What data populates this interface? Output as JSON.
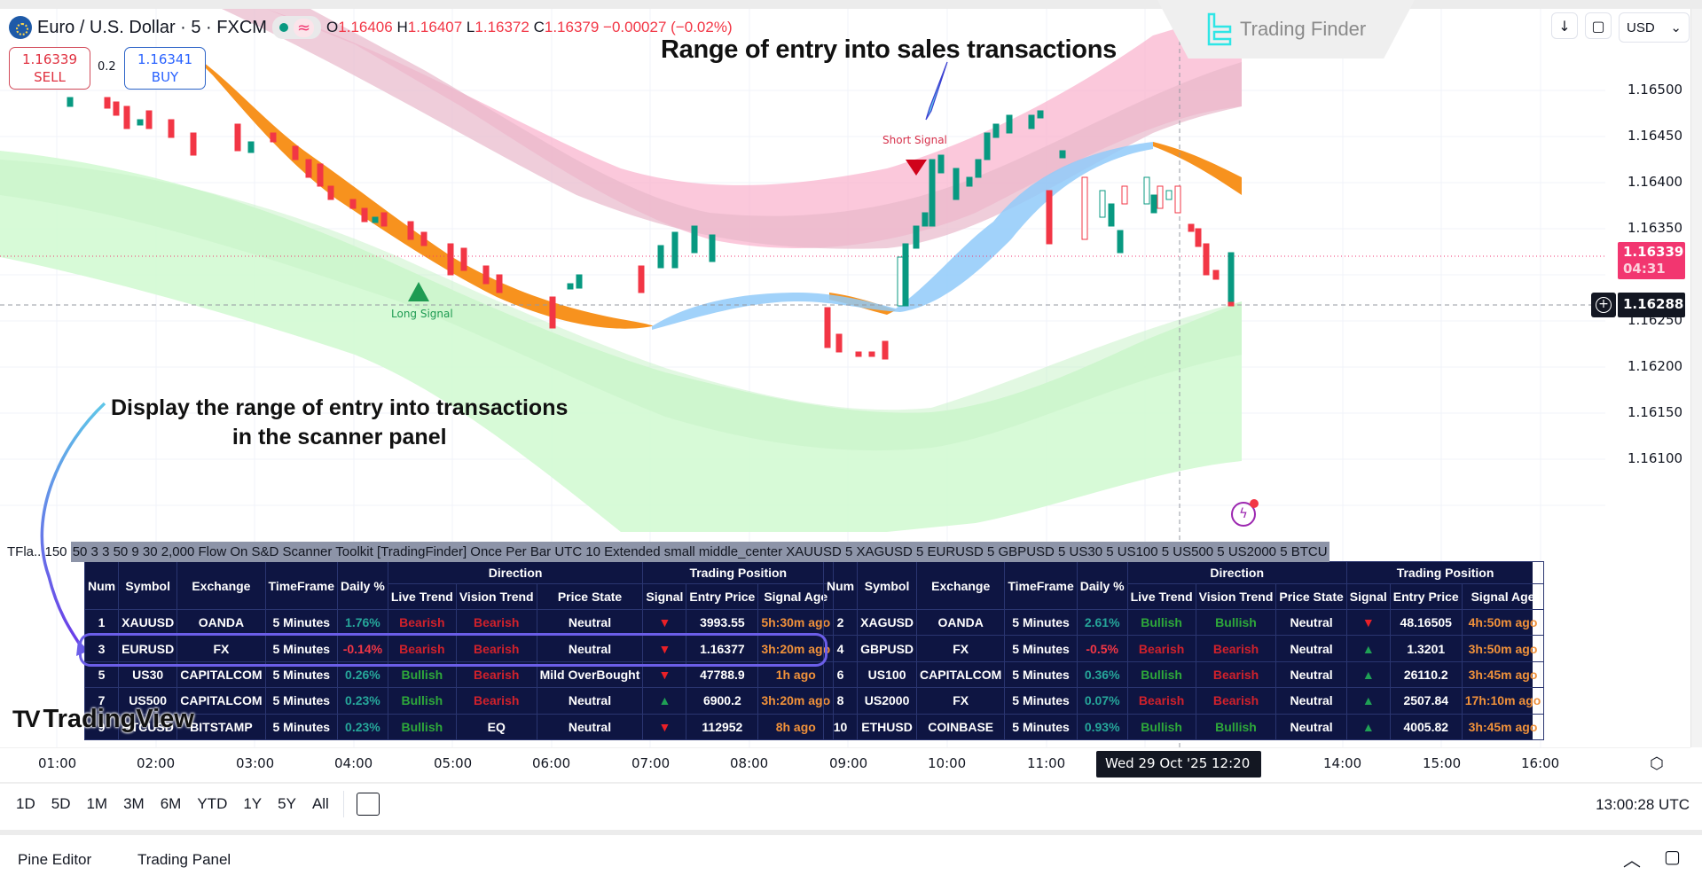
{
  "header": {
    "symbol_title": "Euro / U.S. Dollar · 5 · FXCM",
    "market_status": "open",
    "ohlc": {
      "o_label": "O",
      "o": "1.16406",
      "h_label": "H",
      "h": "1.16407",
      "l_label": "L",
      "l": "1.16372",
      "c_label": "C",
      "c": "1.16379",
      "change": "−0.00027 (−0.02%)"
    },
    "sell": {
      "price": "1.16339",
      "label": "SELL"
    },
    "buy": {
      "price": "1.16341",
      "label": "BUY"
    },
    "spread": "0.2"
  },
  "watermark": {
    "brand": "Trading Finder"
  },
  "top_controls": {
    "arrow": "↓",
    "fullscreen": "⛶",
    "currency": "USD"
  },
  "price_axis": {
    "ticks": [
      "1.16500",
      "1.16450",
      "1.16400",
      "1.16350",
      "1.16300",
      "1.16250",
      "1.16200",
      "1.16150",
      "1.16100"
    ],
    "last_price": "1.16339",
    "countdown": "04:31",
    "crosshair_price": "1.16288"
  },
  "annotations": {
    "sales_range": "Range of entry into sales transactions",
    "scanner_line1": "Display the range of entry into transactions",
    "scanner_line2": "in the scanner panel",
    "short_signal": "Short Signal",
    "long_signal": "Long Signal"
  },
  "settings_line": {
    "prefix": "TFla.. 150 ",
    "highlighted": "50 3 3 50 9 30 2,000 Flow On S&D Scanner Toolkit [TradingFinder] Once Per Bar UTC 10 Extended small middle_center XAUUSD 5 XAGUSD 5 EURUSD 5 GBPUSD 5 US30 5 US100 5 US500 5 US2000 5 BTCU"
  },
  "scanner": {
    "group_headers": {
      "direction": "Direction",
      "trading_position": "Trading Position"
    },
    "columns": [
      "Num",
      "Symbol",
      "Exchange",
      "TimeFrame",
      "Daily %",
      "Live Trend",
      "Vision Trend",
      "Price State",
      "Signal",
      "Entry Price",
      "Signal Age"
    ],
    "left_rows": [
      {
        "num": "1",
        "symbol": "XAUUSD",
        "exchange": "OANDA",
        "tf": "5 Minutes",
        "daily": "1.76%",
        "daily_dir": "pos",
        "live": "Bearish",
        "vision": "Bearish",
        "state": "Neutral",
        "signal": "▼",
        "signal_dir": "dn",
        "entry": "3993.55",
        "age": "5h:30m ago"
      },
      {
        "num": "3",
        "symbol": "EURUSD",
        "exchange": "FX",
        "tf": "5 Minutes",
        "daily": "-0.14%",
        "daily_dir": "neg",
        "live": "Bearish",
        "vision": "Bearish",
        "state": "Neutral",
        "signal": "▼",
        "signal_dir": "dn",
        "entry": "1.16377",
        "age": "3h:20m ago"
      },
      {
        "num": "5",
        "symbol": "US30",
        "exchange": "CAPITALCOM",
        "tf": "5 Minutes",
        "daily": "0.26%",
        "daily_dir": "pos",
        "live": "Bullish",
        "vision": "Bearish",
        "state": "Mild OverBought",
        "signal": "▼",
        "signal_dir": "dn",
        "entry": "47788.9",
        "age": "1h ago"
      },
      {
        "num": "7",
        "symbol": "US500",
        "exchange": "CAPITALCOM",
        "tf": "5 Minutes",
        "daily": "0.23%",
        "daily_dir": "pos",
        "live": "Bullish",
        "vision": "Bearish",
        "state": "Neutral",
        "signal": "▲",
        "signal_dir": "up",
        "entry": "6900.2",
        "age": "3h:20m ago"
      },
      {
        "num": "9",
        "symbol": "BTCUSD",
        "exchange": "BITSTAMP",
        "tf": "5 Minutes",
        "daily": "0.23%",
        "daily_dir": "pos",
        "live": "Bullish",
        "vision": "EQ",
        "state": "Neutral",
        "signal": "▼",
        "signal_dir": "dn",
        "entry": "112952",
        "age": "8h ago"
      }
    ],
    "right_rows": [
      {
        "num": "2",
        "symbol": "XAGUSD",
        "exchange": "OANDA",
        "tf": "5 Minutes",
        "daily": "2.61%",
        "daily_dir": "pos",
        "live": "Bullish",
        "vision": "Bullish",
        "state": "Neutral",
        "signal": "▼",
        "signal_dir": "dn",
        "entry": "48.16505",
        "age": "4h:50m ago"
      },
      {
        "num": "4",
        "symbol": "GBPUSD",
        "exchange": "FX",
        "tf": "5 Minutes",
        "daily": "-0.5%",
        "daily_dir": "neg",
        "live": "Bearish",
        "vision": "Bearish",
        "state": "Neutral",
        "signal": "▲",
        "signal_dir": "up",
        "entry": "1.3201",
        "age": "3h:50m ago"
      },
      {
        "num": "6",
        "symbol": "US100",
        "exchange": "CAPITALCOM",
        "tf": "5 Minutes",
        "daily": "0.36%",
        "daily_dir": "pos",
        "live": "Bullish",
        "vision": "Bearish",
        "state": "Neutral",
        "signal": "▲",
        "signal_dir": "up",
        "entry": "26110.2",
        "age": "3h:45m ago"
      },
      {
        "num": "8",
        "symbol": "US2000",
        "exchange": "FX",
        "tf": "5 Minutes",
        "daily": "0.07%",
        "daily_dir": "pos",
        "live": "Bearish",
        "vision": "Bearish",
        "state": "Neutral",
        "signal": "▲",
        "signal_dir": "up",
        "entry": "2507.84",
        "age": "17h:10m ago"
      },
      {
        "num": "10",
        "symbol": "ETHUSD",
        "exchange": "COINBASE",
        "tf": "5 Minutes",
        "daily": "0.93%",
        "daily_dir": "pos",
        "live": "Bullish",
        "vision": "Bullish",
        "state": "Neutral",
        "signal": "▲",
        "signal_dir": "up",
        "entry": "4005.82",
        "age": "3h:45m ago"
      }
    ]
  },
  "tv_logo": {
    "mark": "TV",
    "text": "TradingView"
  },
  "time_axis": {
    "ticks": [
      "01:00",
      "02:00",
      "03:00",
      "04:00",
      "05:00",
      "06:00",
      "07:00",
      "08:00",
      "09:00",
      "10:00",
      "11:00",
      "14:00",
      "15:00",
      "16:00"
    ],
    "crosshair_time": "Wed 29 Oct '25   12:20"
  },
  "range_bar": {
    "ranges": [
      "1D",
      "5D",
      "1M",
      "3M",
      "6M",
      "YTD",
      "1Y",
      "5Y",
      "All"
    ],
    "clock": "13:00:28 UTC"
  },
  "bottom_panel": {
    "tabs": [
      "Pine Editor",
      "Trading Panel"
    ]
  },
  "colors": {
    "bear": "#f23645",
    "bull": "#089981",
    "scanner_bg": "#0e1542",
    "sell_zone": "#f7a3c4",
    "buy_zone": "#d2f8d2",
    "ema_orange": "#f7921e",
    "ema_blue": "#90caf9"
  }
}
